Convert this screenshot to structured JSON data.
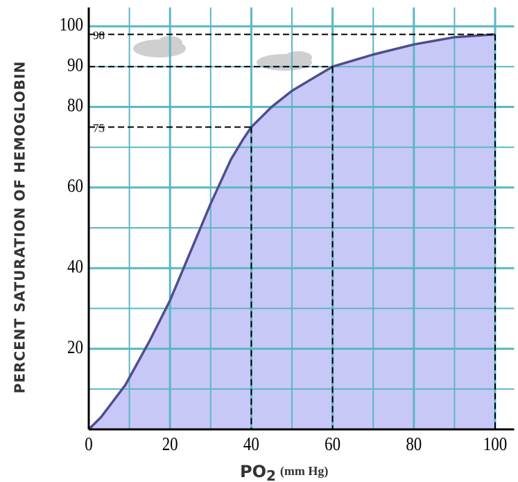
{
  "chart_data": {
    "type": "area",
    "y_label": "Percent Saturation of Hemoglobin",
    "x_label": {
      "main": "PO",
      "sub": "2",
      "unit": "(mm Hg)"
    },
    "x": [
      0,
      3,
      9,
      15,
      20,
      25,
      30,
      35,
      38,
      40,
      45,
      50,
      55,
      60,
      70,
      80,
      90,
      100
    ],
    "values": [
      0,
      3,
      11,
      22,
      32,
      44,
      56,
      67,
      72,
      75,
      80,
      84,
      87,
      90,
      93,
      95.5,
      97.3,
      98
    ],
    "color": "#c8c8f8",
    "line_color": "#4e4e8c",
    "grid_color": "#5ab6c6",
    "xlim": [
      0,
      104
    ],
    "ylim": [
      0,
      104
    ],
    "xticks": [
      0,
      20,
      40,
      60,
      80,
      100
    ],
    "yticks": [
      20,
      40,
      60,
      80,
      90,
      100
    ],
    "xgrid": [
      10,
      20,
      30,
      40,
      50,
      60,
      70,
      80,
      90,
      100
    ],
    "ygrid": [
      10,
      20,
      30,
      40,
      50,
      60,
      70,
      80,
      90,
      100
    ],
    "annotations": [
      {
        "x": 40,
        "y": 75,
        "label": "75"
      },
      {
        "x": 60,
        "y": 90
      },
      {
        "x": 100,
        "y": 98,
        "label": "98"
      }
    ]
  }
}
